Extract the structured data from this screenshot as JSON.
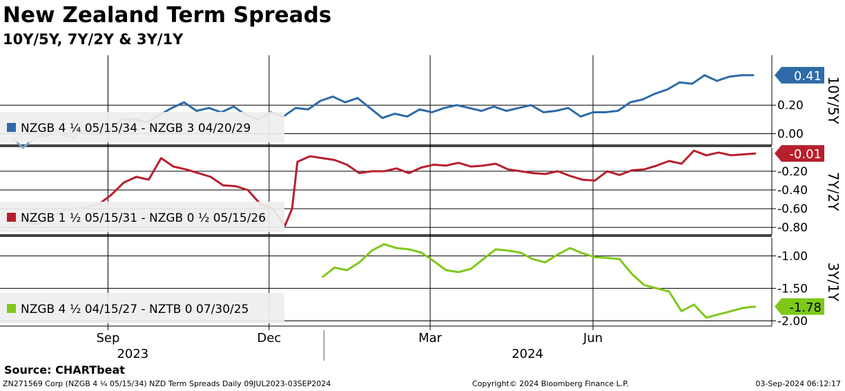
{
  "title": "New Zealand Term Spreads",
  "subtitle": "10Y/5Y, 7Y/2Y & 3Y/1Y",
  "source": "Source: CHARTbeat",
  "footer": {
    "left": "ZN271569 Corp (NZGB 4 ¼ 05/15/34) NZD Term Spreads  Daily 09JUL2023-03SEP2024",
    "center": "Copyright© 2024 Bloomberg Finance L.P.",
    "right": "03-Sep-2024 06:12:17"
  },
  "chart_data": {
    "type": "line",
    "x_labels": [
      {
        "label": "Sep",
        "date": "2023-09-01"
      },
      {
        "label": "Dec",
        "date": "2023-12-01"
      },
      {
        "label": "Mar",
        "date": "2024-03-01"
      },
      {
        "label": "Jun",
        "date": "2024-06-01"
      }
    ],
    "year_labels": [
      {
        "label": "2023",
        "date": "2023-09-15"
      },
      {
        "label": "2024",
        "date": "2024-04-25"
      }
    ],
    "x_range": [
      "2023-07-09",
      "2024-09-03"
    ],
    "panels": [
      {
        "ylabel": "10Y/5Y",
        "ylim": [
          -0.08,
          0.55
        ],
        "ticks": [
          0.0,
          0.2
        ],
        "tick_labels": [
          "0.00",
          "0.20"
        ],
        "color": "#2e6ba8",
        "faded_color": "#7fa7cf",
        "faded_until": "2023-09-05",
        "last_value_label": "0.41",
        "last_value": 0.41,
        "legend": "NZGB 4 ¼ 05/15/34 - NZGB 3 04/20/29",
        "series": [
          [
            "2023-07-09",
            -0.03
          ],
          [
            "2023-07-15",
            -0.1
          ],
          [
            "2023-07-22",
            -0.02
          ],
          [
            "2023-07-29",
            -0.01
          ],
          [
            "2023-08-05",
            0.0
          ],
          [
            "2023-08-12",
            -0.03
          ],
          [
            "2023-08-19",
            0.03
          ],
          [
            "2023-08-26",
            0.05
          ],
          [
            "2023-09-02",
            0.03
          ],
          [
            "2023-09-09",
            0.1
          ],
          [
            "2023-09-16",
            0.1
          ],
          [
            "2023-09-23",
            0.08
          ],
          [
            "2023-09-30",
            0.13
          ],
          [
            "2023-10-07",
            0.18
          ],
          [
            "2023-10-14",
            0.22
          ],
          [
            "2023-10-21",
            0.16
          ],
          [
            "2023-10-28",
            0.18
          ],
          [
            "2023-11-04",
            0.15
          ],
          [
            "2023-11-11",
            0.19
          ],
          [
            "2023-11-18",
            0.13
          ],
          [
            "2023-11-25",
            0.1
          ],
          [
            "2023-12-02",
            0.15
          ],
          [
            "2023-12-09",
            0.12
          ],
          [
            "2023-12-16",
            0.18
          ],
          [
            "2023-12-23",
            0.17
          ],
          [
            "2023-12-30",
            0.23
          ],
          [
            "2024-01-06",
            0.26
          ],
          [
            "2024-01-13",
            0.22
          ],
          [
            "2024-01-20",
            0.25
          ],
          [
            "2024-01-27",
            0.18
          ],
          [
            "2024-02-03",
            0.11
          ],
          [
            "2024-02-10",
            0.14
          ],
          [
            "2024-02-17",
            0.12
          ],
          [
            "2024-02-24",
            0.17
          ],
          [
            "2024-03-02",
            0.15
          ],
          [
            "2024-03-09",
            0.18
          ],
          [
            "2024-03-16",
            0.2
          ],
          [
            "2024-03-23",
            0.18
          ],
          [
            "2024-03-30",
            0.16
          ],
          [
            "2024-04-06",
            0.19
          ],
          [
            "2024-04-13",
            0.16
          ],
          [
            "2024-04-20",
            0.18
          ],
          [
            "2024-04-27",
            0.2
          ],
          [
            "2024-05-04",
            0.15
          ],
          [
            "2024-05-11",
            0.16
          ],
          [
            "2024-05-18",
            0.18
          ],
          [
            "2024-05-25",
            0.12
          ],
          [
            "2024-06-01",
            0.15
          ],
          [
            "2024-06-08",
            0.15
          ],
          [
            "2024-06-15",
            0.16
          ],
          [
            "2024-06-22",
            0.22
          ],
          [
            "2024-06-29",
            0.24
          ],
          [
            "2024-07-06",
            0.28
          ],
          [
            "2024-07-13",
            0.31
          ],
          [
            "2024-07-20",
            0.36
          ],
          [
            "2024-07-27",
            0.35
          ],
          [
            "2024-08-03",
            0.41
          ],
          [
            "2024-08-10",
            0.37
          ],
          [
            "2024-08-17",
            0.4
          ],
          [
            "2024-08-24",
            0.41
          ],
          [
            "2024-08-31",
            0.41
          ]
        ]
      },
      {
        "ylabel": "7Y/2Y",
        "ylim": [
          -0.88,
          0.05
        ],
        "ticks": [
          -0.2,
          -0.4,
          -0.6,
          -0.8
        ],
        "tick_labels": [
          "-0.20",
          "-0.40",
          "-0.60",
          "-0.80"
        ],
        "color": "#b81f2d",
        "faded_color": "#d98c8f",
        "faded_until": "2023-09-01",
        "last_value_label": "-0.01",
        "last_value": -0.01,
        "legend": "NZGB 1 ½ 05/15/31 - NZGB 0 ½ 05/15/26",
        "series": [
          [
            "2023-07-09",
            -0.77
          ],
          [
            "2023-07-16",
            -0.7
          ],
          [
            "2023-07-23",
            -0.78
          ],
          [
            "2023-07-30",
            -0.7
          ],
          [
            "2023-08-06",
            -0.62
          ],
          [
            "2023-08-13",
            -0.6
          ],
          [
            "2023-08-20",
            -0.58
          ],
          [
            "2023-08-27",
            -0.55
          ],
          [
            "2023-09-03",
            -0.45
          ],
          [
            "2023-09-10",
            -0.32
          ],
          [
            "2023-09-17",
            -0.26
          ],
          [
            "2023-09-24",
            -0.29
          ],
          [
            "2023-10-01",
            -0.06
          ],
          [
            "2023-10-08",
            -0.15
          ],
          [
            "2023-10-15",
            -0.18
          ],
          [
            "2023-10-22",
            -0.22
          ],
          [
            "2023-10-29",
            -0.26
          ],
          [
            "2023-11-05",
            -0.35
          ],
          [
            "2023-11-12",
            -0.36
          ],
          [
            "2023-11-19",
            -0.4
          ],
          [
            "2023-11-26",
            -0.55
          ],
          [
            "2023-12-03",
            -0.6
          ],
          [
            "2023-12-10",
            -0.78
          ],
          [
            "2023-12-14",
            -0.6
          ],
          [
            "2023-12-17",
            -0.1
          ],
          [
            "2023-12-24",
            -0.04
          ],
          [
            "2023-12-31",
            -0.06
          ],
          [
            "2024-01-07",
            -0.08
          ],
          [
            "2024-01-14",
            -0.13
          ],
          [
            "2024-01-21",
            -0.22
          ],
          [
            "2024-01-28",
            -0.2
          ],
          [
            "2024-02-04",
            -0.2
          ],
          [
            "2024-02-11",
            -0.17
          ],
          [
            "2024-02-18",
            -0.22
          ],
          [
            "2024-02-25",
            -0.16
          ],
          [
            "2024-03-03",
            -0.13
          ],
          [
            "2024-03-10",
            -0.14
          ],
          [
            "2024-03-17",
            -0.11
          ],
          [
            "2024-03-24",
            -0.15
          ],
          [
            "2024-03-31",
            -0.14
          ],
          [
            "2024-04-07",
            -0.12
          ],
          [
            "2024-04-14",
            -0.18
          ],
          [
            "2024-04-21",
            -0.2
          ],
          [
            "2024-04-28",
            -0.22
          ],
          [
            "2024-05-05",
            -0.23
          ],
          [
            "2024-05-12",
            -0.2
          ],
          [
            "2024-05-19",
            -0.25
          ],
          [
            "2024-05-26",
            -0.29
          ],
          [
            "2024-06-02",
            -0.3
          ],
          [
            "2024-06-09",
            -0.2
          ],
          [
            "2024-06-16",
            -0.24
          ],
          [
            "2024-06-23",
            -0.19
          ],
          [
            "2024-06-30",
            -0.18
          ],
          [
            "2024-07-07",
            -0.14
          ],
          [
            "2024-07-14",
            -0.09
          ],
          [
            "2024-07-21",
            -0.12
          ],
          [
            "2024-07-28",
            0.02
          ],
          [
            "2024-08-04",
            -0.03
          ],
          [
            "2024-08-11",
            0.0
          ],
          [
            "2024-08-18",
            -0.03
          ],
          [
            "2024-08-25",
            -0.02
          ],
          [
            "2024-09-01",
            -0.01
          ]
        ]
      },
      {
        "ylabel": "3Y/1Y",
        "ylim": [
          -2.08,
          -0.72
        ],
        "ticks": [
          -1.0,
          -1.5,
          -2.0
        ],
        "tick_labels": [
          "-1.00",
          "-1.50",
          "-2.00"
        ],
        "color": "#7fc81a",
        "last_value_label": "-1.78",
        "last_value": -1.78,
        "legend": "NZGB 4 ½ 04/15/27 - NZTB 0 07/30/25",
        "series": [
          [
            "2023-12-31",
            -1.33
          ],
          [
            "2024-01-07",
            -1.18
          ],
          [
            "2024-01-14",
            -1.22
          ],
          [
            "2024-01-21",
            -1.1
          ],
          [
            "2024-01-28",
            -0.92
          ],
          [
            "2024-02-04",
            -0.82
          ],
          [
            "2024-02-11",
            -0.88
          ],
          [
            "2024-02-18",
            -0.9
          ],
          [
            "2024-02-25",
            -0.95
          ],
          [
            "2024-03-03",
            -1.08
          ],
          [
            "2024-03-10",
            -1.22
          ],
          [
            "2024-03-17",
            -1.25
          ],
          [
            "2024-03-24",
            -1.2
          ],
          [
            "2024-03-31",
            -1.05
          ],
          [
            "2024-04-07",
            -0.9
          ],
          [
            "2024-04-14",
            -0.92
          ],
          [
            "2024-04-21",
            -0.95
          ],
          [
            "2024-04-28",
            -1.05
          ],
          [
            "2024-05-05",
            -1.1
          ],
          [
            "2024-05-12",
            -0.98
          ],
          [
            "2024-05-19",
            -0.88
          ],
          [
            "2024-05-26",
            -0.96
          ],
          [
            "2024-06-02",
            -1.02
          ],
          [
            "2024-06-09",
            -1.03
          ],
          [
            "2024-06-16",
            -1.05
          ],
          [
            "2024-06-23",
            -1.28
          ],
          [
            "2024-06-30",
            -1.45
          ],
          [
            "2024-07-07",
            -1.5
          ],
          [
            "2024-07-14",
            -1.55
          ],
          [
            "2024-07-21",
            -1.85
          ],
          [
            "2024-07-28",
            -1.75
          ],
          [
            "2024-08-04",
            -1.95
          ],
          [
            "2024-08-11",
            -1.9
          ],
          [
            "2024-08-18",
            -1.85
          ],
          [
            "2024-08-25",
            -1.8
          ],
          [
            "2024-09-01",
            -1.78
          ]
        ]
      }
    ]
  }
}
